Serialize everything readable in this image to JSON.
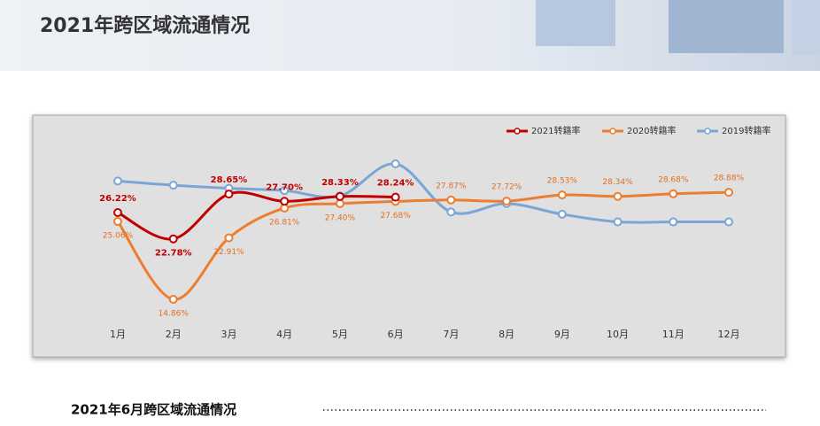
{
  "header": {
    "title": "2021年跨区域流通情况"
  },
  "chart_data": {
    "type": "line",
    "categories": [
      "1月",
      "2月",
      "3月",
      "4月",
      "5月",
      "6月",
      "7月",
      "8月",
      "9月",
      "10月",
      "11月",
      "12月"
    ],
    "series": [
      {
        "name": "2021转籍率",
        "color": "#c00000",
        "values": [
          26.22,
          22.78,
          28.65,
          27.7,
          28.33,
          28.24,
          null,
          null,
          null,
          null,
          null,
          null
        ],
        "value_labels": [
          "26.22%",
          "22.78%",
          "28.65%",
          "27.70%",
          "28.33%",
          "28.24%",
          null,
          null,
          null,
          null,
          null,
          null
        ]
      },
      {
        "name": "2020转籍率",
        "color": "#ed7d31",
        "values": [
          25.06,
          14.86,
          22.91,
          26.81,
          27.4,
          27.68,
          27.87,
          27.72,
          28.53,
          28.34,
          28.68,
          28.88
        ],
        "value_labels": [
          "25.06%",
          "14.86%",
          "22.91%",
          "26.81%",
          "27.40%",
          "27.68%",
          "27.87%",
          "27.72%",
          "28.53%",
          "28.34%",
          "28.68%",
          "28.88%"
        ]
      },
      {
        "name": "2019转籍率",
        "color": "#7aa6d6",
        "values": [
          30.35,
          29.8,
          29.4,
          29.1,
          28.4,
          32.6,
          26.3,
          27.4,
          26.0,
          25.0,
          25.0,
          25.0
        ]
      }
    ],
    "legend": "top-right"
  },
  "section": {
    "title": "2021年6月跨区域流通情况"
  }
}
